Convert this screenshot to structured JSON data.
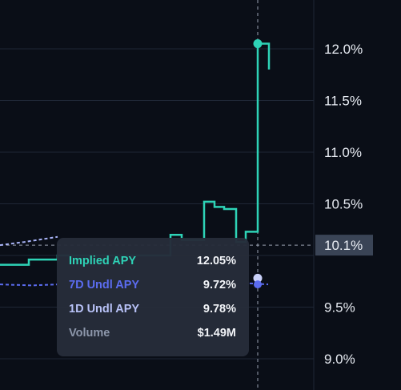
{
  "chart_data": {
    "type": "line",
    "y_axis": {
      "ticks": [
        "12.0%",
        "11.5%",
        "11.0%",
        "10.5%",
        "9.5%",
        "9.0%"
      ],
      "tick_values": [
        12.0,
        11.5,
        11.0,
        10.5,
        9.5,
        9.0
      ],
      "crosshair_label": "10.1%",
      "crosshair_value": 10.1,
      "range": [
        8.7,
        12.4
      ]
    },
    "grid": true,
    "series": [
      {
        "name": "Implied APY",
        "color": "#2ed3b7",
        "step_line": [
          [
            0,
            9.91
          ],
          [
            36,
            9.91
          ],
          [
            36,
            9.96
          ],
          [
            72,
            9.96
          ],
          [
            72,
            10.0
          ],
          [
            213,
            10.0
          ],
          [
            213,
            10.2
          ],
          [
            227,
            10.2
          ],
          [
            227,
            10.15
          ],
          [
            255,
            10.15
          ],
          [
            255,
            10.52
          ],
          [
            268,
            10.52
          ],
          [
            268,
            10.47
          ],
          [
            280,
            10.47
          ],
          [
            280,
            10.45
          ],
          [
            295,
            10.45
          ],
          [
            295,
            10.13
          ],
          [
            307,
            10.13
          ],
          [
            307,
            10.23
          ],
          [
            322,
            10.23
          ],
          [
            322,
            12.05
          ],
          [
            336,
            12.05
          ],
          [
            336,
            11.8
          ]
        ],
        "marker": [
          322,
          12.05
        ]
      },
      {
        "name": "7D Undl APY",
        "color": "#5b6cf0",
        "dashed": true,
        "dashed_line": [
          [
            0,
            9.72
          ],
          [
            40,
            9.71
          ],
          [
            72,
            9.72
          ]
        ],
        "tail_line": [
          [
            312,
            9.73
          ],
          [
            335,
            9.72
          ]
        ],
        "marker": [
          322,
          9.72
        ]
      },
      {
        "name": "1D Undl APY",
        "color": "#a9b4f8",
        "dashed": true,
        "dashed_line": [
          [
            0,
            10.1
          ],
          [
            30,
            10.13
          ],
          [
            72,
            10.18
          ]
        ],
        "marker": [
          322,
          9.78
        ]
      }
    ],
    "tooltip": {
      "rows": [
        {
          "label": "Implied APY",
          "value": "12.05%",
          "color": "#2ed3b7"
        },
        {
          "label": "7D Undl APY",
          "value": "9.72%",
          "color": "#5b6cf0"
        },
        {
          "label": "1D Undl APY",
          "value": "9.78%",
          "color": "#b8c2f7"
        },
        {
          "label": "Volume",
          "value": "$1.49M",
          "color": "#8d97ab"
        }
      ]
    }
  }
}
